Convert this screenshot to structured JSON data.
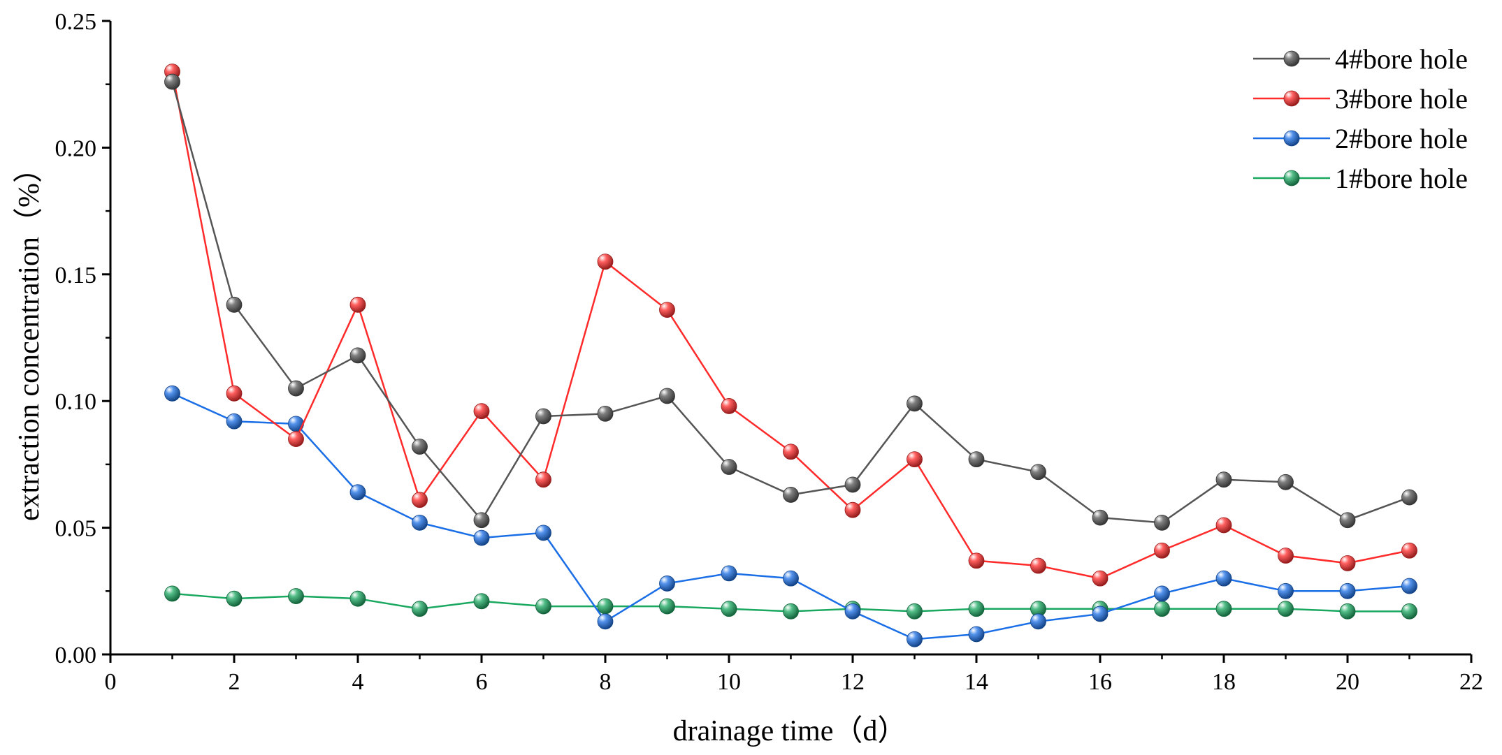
{
  "chart_data": {
    "type": "line",
    "title": "",
    "xlabel": "drainage time（d）",
    "ylabel": "extraction concentration（%）",
    "xlim": [
      0,
      22
    ],
    "ylim": [
      0,
      0.25
    ],
    "x_ticks": [
      0,
      2,
      4,
      6,
      8,
      10,
      12,
      14,
      16,
      18,
      20,
      22
    ],
    "x_tick_labels": [
      "0",
      "2",
      "4",
      "6",
      "8",
      "10",
      "12",
      "14",
      "16",
      "18",
      "20",
      "22"
    ],
    "y_ticks": [
      0,
      0.05,
      0.1,
      0.15,
      0.2,
      0.25
    ],
    "y_tick_labels": [
      "0.00",
      "0.05",
      "0.10",
      "0.15",
      "0.20",
      "0.25"
    ],
    "grid": false,
    "legend_position": "top-right",
    "x": [
      1,
      2,
      3,
      4,
      5,
      6,
      7,
      8,
      9,
      10,
      11,
      12,
      13,
      14,
      15,
      16,
      17,
      18,
      19,
      20,
      21
    ],
    "series": [
      {
        "name": "4#bore hole",
        "color": "#555555",
        "values": [
          0.226,
          0.138,
          0.105,
          0.118,
          0.082,
          0.053,
          0.094,
          0.095,
          0.102,
          0.074,
          0.063,
          0.067,
          0.099,
          0.077,
          0.072,
          0.054,
          0.052,
          0.069,
          0.068,
          0.053,
          0.062
        ]
      },
      {
        "name": "3#bore hole",
        "color": "#ff2a2a",
        "values": [
          0.23,
          0.103,
          0.085,
          0.138,
          0.061,
          0.096,
          0.069,
          0.155,
          0.136,
          0.098,
          0.08,
          0.057,
          0.077,
          0.037,
          0.035,
          0.03,
          0.041,
          0.051,
          0.039,
          0.036,
          0.041
        ]
      },
      {
        "name": "2#bore hole",
        "color": "#1a6ee6",
        "values": [
          0.103,
          0.092,
          0.091,
          0.064,
          0.052,
          0.046,
          0.048,
          0.013,
          0.028,
          0.032,
          0.03,
          0.017,
          0.006,
          0.008,
          0.013,
          0.016,
          0.024,
          0.03,
          0.025,
          0.025,
          0.027
        ]
      },
      {
        "name": "1#bore hole",
        "color": "#1aa860",
        "values": [
          0.024,
          0.022,
          0.023,
          0.022,
          0.018,
          0.021,
          0.019,
          0.019,
          0.019,
          0.018,
          0.017,
          0.018,
          0.017,
          0.018,
          0.018,
          0.018,
          0.018,
          0.018,
          0.018,
          0.017,
          0.017
        ]
      }
    ]
  }
}
